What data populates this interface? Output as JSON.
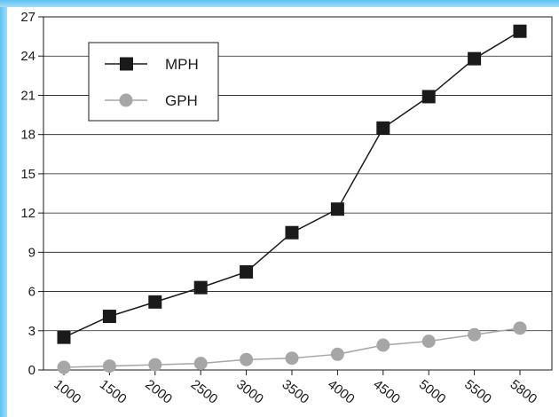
{
  "chart_data": {
    "type": "line",
    "title": "",
    "xlabel": "",
    "ylabel": "",
    "categories": [
      "1000",
      "1500",
      "2000",
      "2500",
      "3000",
      "3500",
      "4000",
      "4500",
      "5000",
      "5500",
      "5800"
    ],
    "ylim": [
      0,
      27
    ],
    "yticks": [
      "0",
      "3",
      "6",
      "9",
      "12",
      "15",
      "18",
      "21",
      "24",
      "27"
    ],
    "grid": "horizontal",
    "legend_position": "top-left",
    "series": [
      {
        "name": "MPH",
        "marker": "square",
        "color": "#1a1a1a",
        "values": [
          2.5,
          4.1,
          5.2,
          6.3,
          7.5,
          10.5,
          12.3,
          18.5,
          20.9,
          23.8,
          25.9
        ]
      },
      {
        "name": "GPH",
        "marker": "circle",
        "color": "#a6a6a6",
        "values": [
          0.2,
          0.3,
          0.4,
          0.5,
          0.8,
          0.9,
          1.2,
          1.9,
          2.2,
          2.7,
          3.2
        ]
      }
    ]
  }
}
